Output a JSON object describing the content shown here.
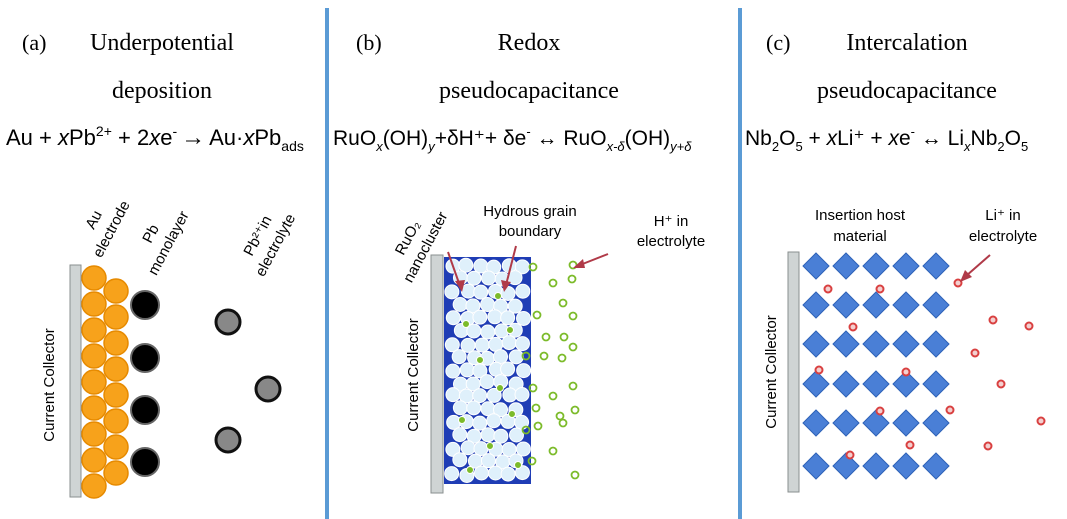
{
  "panels": [
    {
      "letter": "(a)",
      "title_lines": [
        "Underpotential",
        "deposition"
      ],
      "equation": {
        "lhs": [
          "Au + ",
          "x",
          "Pb",
          "2+",
          " + 2",
          "x",
          "e",
          "-"
        ],
        "arrow": "→",
        "rhs": [
          "Au·",
          "x",
          "Pb",
          "ads"
        ]
      },
      "labels": {
        "au_electrode": [
          "Au",
          "electrode"
        ],
        "pb_monolayer": [
          "Pb",
          "monolayer"
        ],
        "pb_ions": [
          "Pb²⁺in",
          "electrolyte"
        ],
        "collector": "Current Collector"
      }
    },
    {
      "letter": "(b)",
      "title_lines": [
        "Redox",
        "pseudocapacitance"
      ],
      "equation": {
        "parts": [
          "RuO",
          "x",
          "(OH)",
          "y",
          "+δH⁺+ δe",
          "-",
          " ↔ RuO",
          "x-δ",
          "(OH)",
          "y+δ"
        ]
      },
      "labels": {
        "nanocluster": [
          "RuO₂",
          "nanocluster"
        ],
        "grain": [
          "Hydrous grain",
          "boundary"
        ],
        "protons": [
          "H⁺ in",
          "electrolyte"
        ],
        "collector": "Current Collector"
      }
    },
    {
      "letter": "(c)",
      "title_lines": [
        "Intercalation",
        "pseudocapacitance"
      ],
      "equation": {
        "parts": [
          "Nb",
          "2",
          "O",
          "5",
          " + ",
          "x",
          "Li⁺ + ",
          "x",
          "e",
          "-",
          " ↔ Li",
          "x",
          "Nb",
          "2",
          "O",
          "5"
        ]
      },
      "labels": {
        "host": [
          "Insertion host",
          "material"
        ],
        "li_ions": [
          "Li⁺ in",
          "electrolyte"
        ],
        "collector": "Current Collector"
      }
    }
  ],
  "colors": {
    "divider": "#5b9bd5",
    "collector_fill": "#cfd4d4",
    "gold": "#f7a21b",
    "gold_stroke": "#e68a00",
    "pb_ion": "#888888",
    "ruo2_bg": "#1f3db5",
    "ruo2_sphere": "#dff0fb",
    "green_dot": "#7cbb2a",
    "diamond": "#4a7fd6",
    "li_dot": "#d94040",
    "arrow": "#b03a48"
  }
}
